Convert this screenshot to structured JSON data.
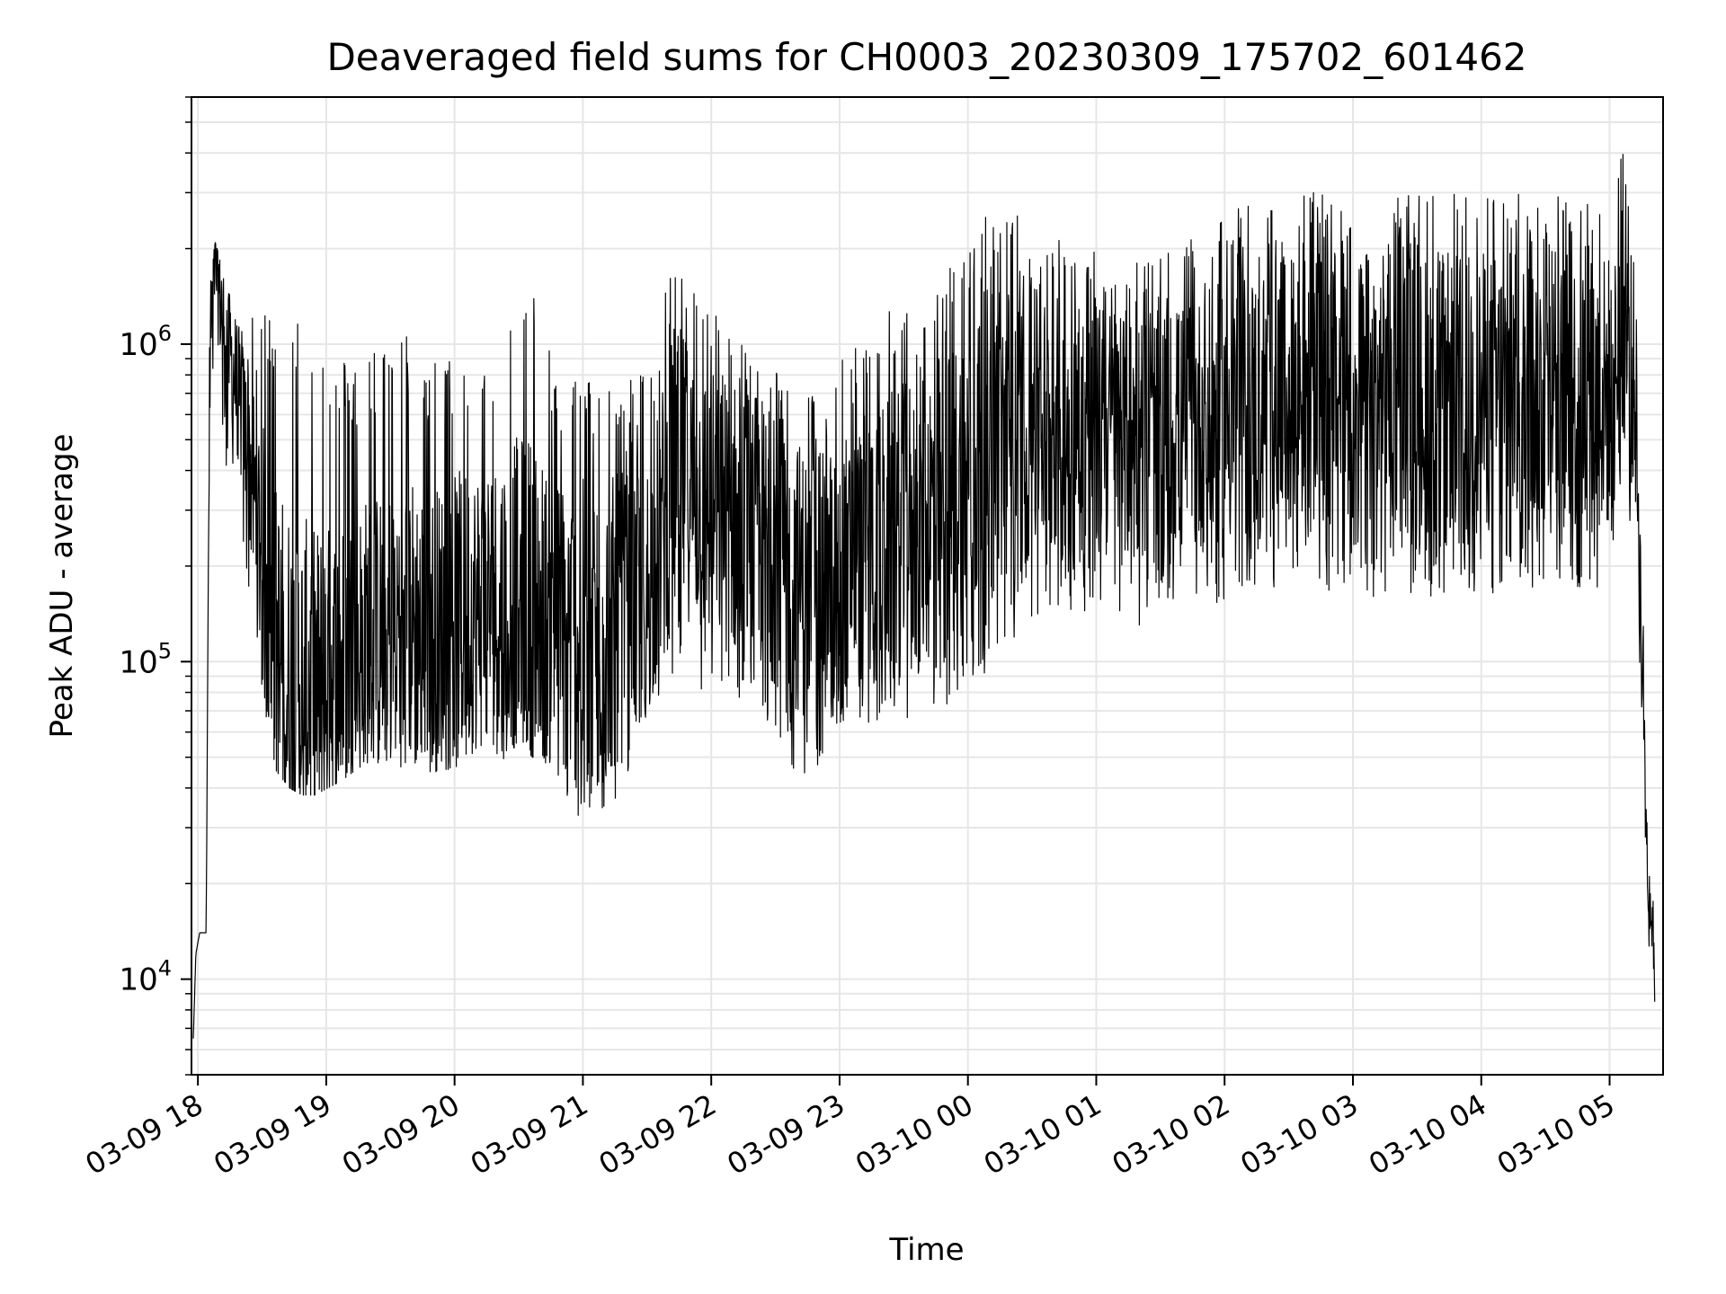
{
  "chart_data": {
    "type": "line",
    "title": "Deaveraged field sums for CH0003_20230309_175702_601462",
    "xlabel": "Time",
    "ylabel": "Peak ADU - average",
    "yscale": "log",
    "grid": true,
    "line_color": "#000000",
    "grid_color": "#e6e6e6",
    "xlim": [
      "2023-03-09 17:57",
      "2023-03-10 05:25"
    ],
    "ylim": [
      5000,
      6000000
    ],
    "x_ticks": [
      "03-09 18",
      "03-09 19",
      "03-09 20",
      "03-09 21",
      "03-09 22",
      "03-09 23",
      "03-10 00",
      "03-10 01",
      "03-10 02",
      "03-10 03",
      "03-10 04",
      "03-10 05"
    ],
    "y_ticks": [
      {
        "value": 10000,
        "base": "10",
        "exp": "4"
      },
      {
        "value": 100000,
        "base": "10",
        "exp": "5"
      },
      {
        "value": 1000000,
        "base": "10",
        "exp": "6"
      }
    ],
    "series": [
      {
        "time_hours": [
          -0.05,
          -0.03,
          0.0,
          0.05,
          0.08,
          0.12,
          0.15,
          0.2,
          0.3,
          0.4,
          0.5,
          0.6,
          0.7,
          0.8,
          0.9,
          1.0,
          1.1,
          1.2,
          1.3,
          1.4,
          1.5,
          1.6,
          1.7,
          1.8,
          1.9,
          2.0,
          2.1,
          2.2,
          2.3,
          2.4,
          2.5,
          2.6,
          2.7,
          2.8,
          2.9,
          3.0,
          3.1,
          3.2,
          3.3,
          3.4,
          3.5,
          3.6,
          3.7,
          3.8,
          3.9,
          4.0,
          4.1,
          4.2,
          4.3,
          4.4,
          4.5,
          4.6,
          4.7,
          4.8,
          4.9,
          5.0,
          5.1,
          5.2,
          5.3,
          5.4,
          5.5,
          5.6,
          5.7,
          5.8,
          5.9,
          6.0,
          6.1,
          6.2,
          6.3,
          6.4,
          6.5,
          6.6,
          6.7,
          6.8,
          6.9,
          7.0,
          7.1,
          7.2,
          7.3,
          7.4,
          7.5,
          7.6,
          7.7,
          7.8,
          7.9,
          8.0,
          8.1,
          8.2,
          8.3,
          8.4,
          8.5,
          8.6,
          8.7,
          8.8,
          8.9,
          9.0,
          9.1,
          9.2,
          9.3,
          9.4,
          9.5,
          9.6,
          9.7,
          9.8,
          9.9,
          10.0,
          10.1,
          10.2,
          10.3,
          10.4,
          10.5,
          10.6,
          10.7,
          10.8,
          10.9,
          11.0,
          11.1,
          11.2,
          11.25,
          11.3,
          11.35,
          11.4
        ],
        "mean": [
          6500,
          12000,
          14000,
          14000,
          1000000,
          1700000,
          1500000,
          1100000,
          700000,
          400000,
          200000,
          110000,
          90000,
          85000,
          85000,
          90000,
          95000,
          110000,
          120000,
          120000,
          130000,
          140000,
          130000,
          125000,
          130000,
          140000,
          145000,
          150000,
          150000,
          160000,
          170000,
          160000,
          140000,
          130000,
          120000,
          120000,
          125000,
          130000,
          140000,
          150000,
          180000,
          250000,
          400000,
          380000,
          320000,
          300000,
          290000,
          280000,
          270000,
          250000,
          230000,
          200000,
          180000,
          170000,
          180000,
          200000,
          210000,
          220000,
          230000,
          250000,
          260000,
          280000,
          300000,
          320000,
          350000,
          400000,
          450000,
          500000,
          520000,
          540000,
          550000,
          560000,
          560000,
          550000,
          540000,
          530000,
          520000,
          510000,
          500000,
          500000,
          500000,
          520000,
          540000,
          560000,
          580000,
          600000,
          620000,
          640000,
          660000,
          680000,
          700000,
          700000,
          700000,
          700000,
          700000,
          700000,
          700000,
          700000,
          700000,
          700000,
          700000,
          700000,
          700000,
          700000,
          700000,
          700000,
          700000,
          700000,
          700000,
          700000,
          700000,
          700000,
          700000,
          700000,
          700000,
          700000,
          1200000,
          700000,
          100000,
          18000,
          14000
        ],
        "lower": [
          6500,
          12000,
          14000,
          14000,
          500000,
          800000,
          500000,
          400000,
          300000,
          150000,
          70000,
          45000,
          40000,
          38000,
          38000,
          40000,
          42000,
          45000,
          48000,
          48000,
          48000,
          46000,
          45000,
          45000,
          45000,
          46000,
          48000,
          48000,
          48000,
          50000,
          50000,
          50000,
          42000,
          38000,
          32000,
          30000,
          32000,
          34000,
          38000,
          45000,
          55000,
          70000,
          90000,
          90000,
          80000,
          70000,
          65000,
          60000,
          60000,
          55000,
          50000,
          45000,
          40000,
          45000,
          50000,
          60000,
          60000,
          60000,
          65000,
          65000,
          65000,
          65000,
          65000,
          70000,
          75000,
          80000,
          90000,
          100000,
          110000,
          120000,
          130000,
          140000,
          145000,
          145000,
          140000,
          140000,
          135000,
          130000,
          130000,
          130000,
          130000,
          140000,
          145000,
          150000,
          150000,
          150000,
          160000,
          160000,
          170000,
          170000,
          170000,
          170000,
          165000,
          160000,
          160000,
          160000,
          160000,
          160000,
          160000,
          160000,
          160000,
          160000,
          160000,
          160000,
          160000,
          160000,
          160000,
          160000,
          160000,
          160000,
          160000,
          160000,
          160000,
          160000,
          160000,
          160000,
          400000,
          200000,
          60000,
          12000,
          6500
        ],
        "upper": [
          6500,
          12000,
          14000,
          14000,
          1800000,
          2100000,
          1900000,
          1500000,
          1300000,
          1200000,
          1300000,
          1400000,
          1400000,
          1200000,
          1100000,
          1000000,
          900000,
          900000,
          950000,
          1000000,
          1000000,
          1100000,
          1000000,
          900000,
          900000,
          900000,
          950000,
          1000000,
          1100000,
          1200000,
          1300000,
          1500000,
          1000000,
          850000,
          800000,
          800000,
          800000,
          750000,
          750000,
          800000,
          900000,
          1400000,
          2000000,
          1700000,
          1400000,
          1300000,
          1200000,
          1100000,
          1100000,
          1000000,
          900000,
          800000,
          700000,
          700000,
          800000,
          900000,
          1000000,
          1100000,
          1200000,
          1300000,
          1400000,
          1500000,
          1600000,
          1700000,
          1800000,
          2000000,
          2500000,
          3000000,
          2800000,
          2500000,
          2300000,
          2200000,
          2200000,
          2200000,
          2100000,
          2000000,
          2000000,
          1900000,
          1900000,
          1900000,
          1900000,
          2000000,
          2100000,
          2200000,
          2300000,
          2500000,
          2700000,
          2800000,
          2900000,
          3000000,
          3000000,
          3000000,
          3000000,
          3000000,
          3000000,
          3000000,
          3000000,
          3000000,
          3000000,
          3000000,
          3000000,
          3000000,
          3000000,
          3000000,
          3000000,
          3000000,
          3000000,
          3000000,
          3000000,
          3000000,
          3000000,
          3000000,
          3000000,
          3000000,
          3000000,
          3000000,
          4400000,
          2500000,
          200000,
          25000,
          20000
        ]
      }
    ]
  }
}
